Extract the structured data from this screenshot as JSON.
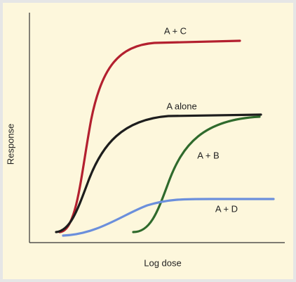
{
  "axes": {
    "y_label": "Response",
    "x_label": "Log dose"
  },
  "curves": [
    {
      "label": "A + C"
    },
    {
      "label": "A alone"
    },
    {
      "label": "A + B"
    },
    {
      "label": "A + D"
    }
  ]
}
